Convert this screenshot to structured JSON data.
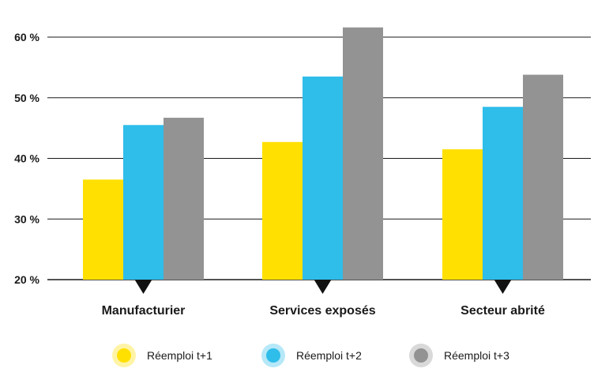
{
  "chart_data": {
    "type": "bar",
    "categories": [
      "Manufacturier",
      "Services exposés",
      "Secteur abrité"
    ],
    "series": [
      {
        "name": "Réemploi t+1",
        "color": "#FFE000",
        "values": [
          36.5,
          42.7,
          41.5
        ]
      },
      {
        "name": "Réemploi t+2",
        "color": "#2FBDEA",
        "values": [
          45.5,
          53.5,
          48.5
        ]
      },
      {
        "name": "Réemploi t+3",
        "color": "#939393",
        "values": [
          46.7,
          61.6,
          53.8
        ]
      }
    ],
    "ylim": [
      20,
      62
    ],
    "yticks": [
      20,
      30,
      40,
      50,
      60
    ],
    "ytick_labels": [
      "20 %",
      "30 %",
      "40 %",
      "50 %",
      "60 %"
    ],
    "grid": true,
    "legend_position": "bottom"
  }
}
